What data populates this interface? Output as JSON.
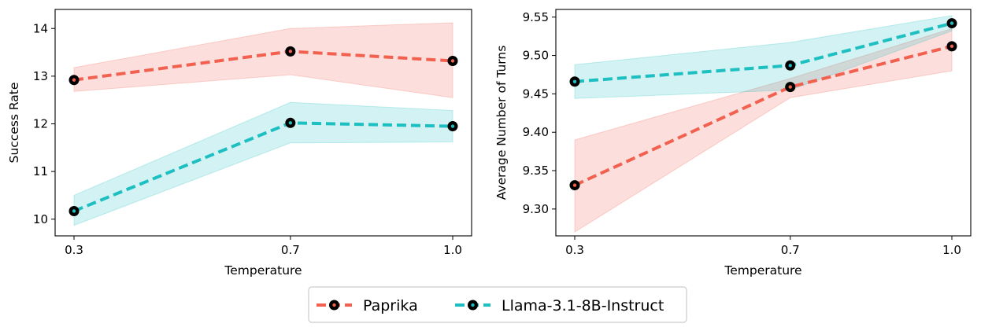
{
  "chart_data": [
    {
      "type": "line",
      "title": "",
      "xlabel": "Temperature",
      "ylabel": "Success Rate",
      "x": [
        0.3,
        0.7,
        1.0
      ],
      "x_tick_labels": [
        "0.3",
        "0.7",
        "1.0"
      ],
      "ylim": [
        9.65,
        14.4
      ],
      "yticks": [
        10,
        11,
        12,
        13,
        14
      ],
      "series": [
        {
          "name": "Paprika",
          "color": "#f26150",
          "values": [
            12.92,
            13.52,
            13.32
          ],
          "lower": [
            12.68,
            13.03,
            12.55
          ],
          "upper": [
            13.18,
            14.0,
            14.12
          ]
        },
        {
          "name": "Llama-3.1-8B-Instruct",
          "color": "#1ebfc1",
          "values": [
            10.17,
            12.02,
            11.95
          ],
          "lower": [
            9.87,
            11.6,
            11.62
          ],
          "upper": [
            10.5,
            12.45,
            12.28
          ]
        }
      ]
    },
    {
      "type": "line",
      "title": "",
      "xlabel": "Temperature",
      "ylabel": "Average Number of Turns",
      "x": [
        0.3,
        0.7,
        1.0
      ],
      "x_tick_labels": [
        "0.3",
        "0.7",
        "1.0"
      ],
      "ylim": [
        9.265,
        9.56
      ],
      "yticks": [
        9.3,
        9.35,
        9.4,
        9.45,
        9.5,
        9.55
      ],
      "ytick_labels": [
        "9.30",
        "9.35",
        "9.40",
        "9.45",
        "9.50",
        "9.55"
      ],
      "series": [
        {
          "name": "Paprika",
          "color": "#f26150",
          "values": [
            9.331,
            9.459,
            9.512
          ],
          "lower": [
            9.27,
            9.445,
            9.48
          ],
          "upper": [
            9.39,
            9.47,
            9.535
          ]
        },
        {
          "name": "Llama-3.1-8B-Instruct",
          "color": "#1ebfc1",
          "values": [
            9.466,
            9.487,
            9.542
          ],
          "lower": [
            9.444,
            9.455,
            9.532
          ],
          "upper": [
            9.488,
            9.517,
            9.552
          ]
        }
      ]
    }
  ],
  "legend": {
    "items": [
      {
        "label": "Paprika",
        "color": "#f26150"
      },
      {
        "label": "Llama-3.1-8B-Instruct",
        "color": "#1ebfc1"
      }
    ]
  }
}
